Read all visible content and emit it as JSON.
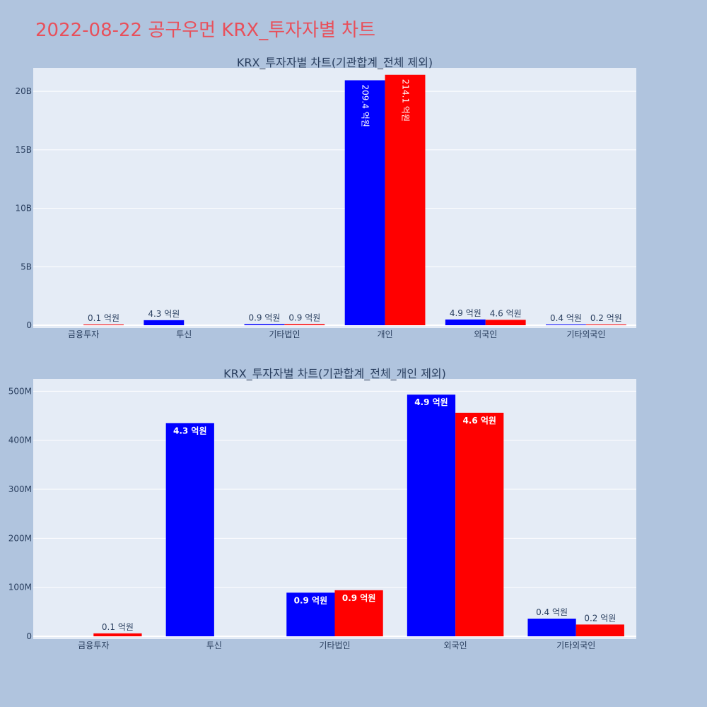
{
  "page_title": "2022-08-22 공구우먼 KRX_투자자별 차트",
  "colors": {
    "background": "#b0c4de",
    "plot_bg": "#e5ecf6",
    "title": "#e8505b",
    "series_a": "#0000ff",
    "series_b": "#ff0000",
    "text": "#2a3f5f"
  },
  "chart_data": [
    {
      "type": "bar",
      "title": "KRX_투자자별 차트(기관합계_전체 제외)",
      "categories": [
        "금융투자",
        "투신",
        "기타법인",
        "개인",
        "외국인",
        "기타외국인"
      ],
      "ylim": [
        0,
        22000000000
      ],
      "yticks": [
        0,
        5000000000,
        10000000000,
        15000000000,
        20000000000
      ],
      "ytick_labels": [
        "0",
        "5B",
        "10B",
        "15B",
        "20B"
      ],
      "grid": true,
      "series": [
        {
          "color": "#0000ff",
          "values": [
            0,
            430000000,
            90000000,
            20940000000,
            490000000,
            40000000
          ],
          "labels": [
            "",
            "4.3 억원",
            "0.9 억원",
            "209.4 억원",
            "4.9 억원",
            "0.4 억원"
          ]
        },
        {
          "color": "#ff0000",
          "values": [
            10000000,
            0,
            90000000,
            21410000000,
            460000000,
            20000000
          ],
          "labels": [
            "0.1 억원",
            "",
            "0.9 억원",
            "214.1 억원",
            "4.6 억원",
            "0.2 억원"
          ]
        }
      ]
    },
    {
      "type": "bar",
      "title": "KRX_투자자별 차트(기관합계_전체_개인 제외)",
      "categories": [
        "금융투자",
        "투신",
        "기타법인",
        "외국인",
        "기타외국인"
      ],
      "ylim": [
        0,
        525000000
      ],
      "yticks": [
        0,
        100000000,
        200000000,
        300000000,
        400000000,
        500000000
      ],
      "ytick_labels": [
        "0",
        "100M",
        "200M",
        "300M",
        "400M",
        "500M"
      ],
      "grid": true,
      "series": [
        {
          "color": "#0000ff",
          "values": [
            0,
            435000000,
            89000000,
            493000000,
            36000000
          ],
          "labels": [
            "",
            "4.3 억원",
            "0.9 억원",
            "4.9 억원",
            "0.4 억원"
          ]
        },
        {
          "color": "#ff0000",
          "values": [
            6000000,
            0,
            94000000,
            456000000,
            24000000
          ],
          "labels": [
            "0.1 억원",
            "",
            "0.9 억원",
            "4.6 억원",
            "0.2 억원"
          ]
        }
      ]
    }
  ]
}
